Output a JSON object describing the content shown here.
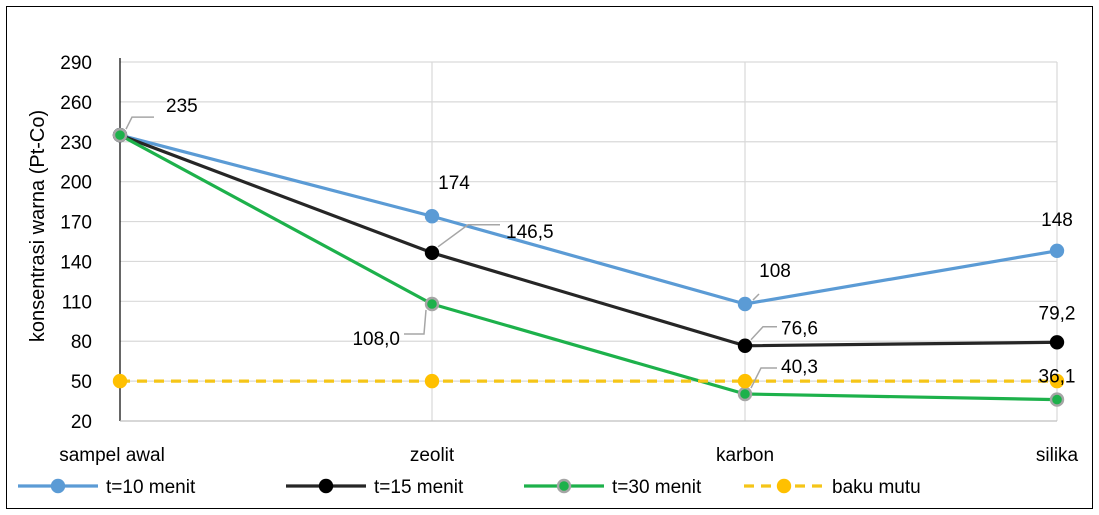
{
  "chart_data": {
    "type": "line",
    "categories": [
      "sampel awal",
      "zeolit",
      "karbon",
      "silika"
    ],
    "ylabel": "konsentrasi warna (Pt-Co)",
    "xlabel": "",
    "ylim": [
      20,
      290
    ],
    "yticks": [
      "290",
      "260",
      "230",
      "200",
      "170",
      "140",
      "110",
      "80",
      "50",
      "20"
    ],
    "ytick_values": [
      290,
      260,
      230,
      200,
      170,
      140,
      110,
      80,
      50,
      20
    ],
    "grid": "vertical and horizontal",
    "legend_position": "bottom",
    "series": [
      {
        "name": "t=10 menit",
        "values": [
          235,
          174,
          108,
          148
        ],
        "color": "#5B9BD5",
        "marker_fill": "#5B9BD5",
        "marker_edge": "#5B9BD5",
        "dashed": false,
        "labels": [
          "235",
          "174",
          "108",
          "148"
        ]
      },
      {
        "name": "t=15 menit",
        "values": [
          235,
          146.5,
          76.6,
          79.2
        ],
        "color": "#262626",
        "marker_fill": "#000000",
        "marker_edge": "#000000",
        "dashed": false,
        "labels": [
          "",
          "146,5",
          "76,6",
          "79,2"
        ]
      },
      {
        "name": "t=30 menit",
        "values": [
          235,
          108,
          40.3,
          36.1
        ],
        "color": "#1DB14B",
        "marker_fill": "#1DB14B",
        "marker_edge": "#A5A5A5",
        "dashed": false,
        "labels": [
          "",
          "108,0",
          "40,3",
          "36,1"
        ]
      },
      {
        "name": "baku mutu",
        "values": [
          50,
          50,
          50,
          50
        ],
        "color": "#F5C518",
        "marker_fill": "#FFC000",
        "marker_edge": "#FFC000",
        "dashed": true,
        "labels": [
          "",
          "",
          "",
          ""
        ]
      }
    ]
  }
}
